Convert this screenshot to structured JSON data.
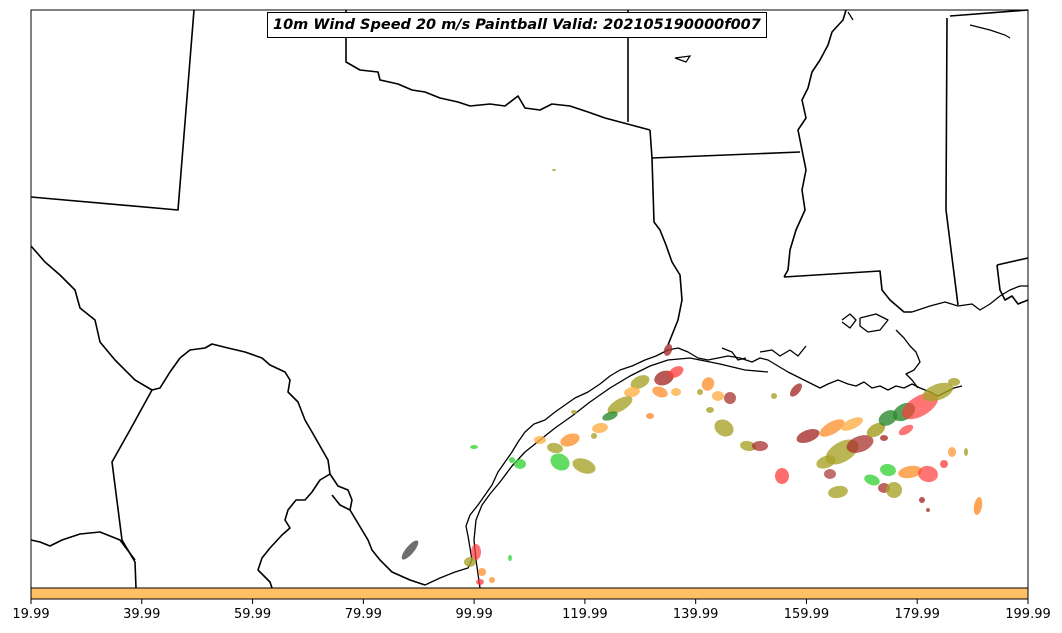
{
  "chart_data": {
    "type": "map",
    "title": "10m Wind Speed 20 m/s Paintball Valid: 202105190000f007",
    "colorbar": {
      "ticks": [
        "19.99",
        "39.99",
        "59.99",
        "79.99",
        "99.99",
        "119.99",
        "139.99",
        "159.99",
        "179.99",
        "199.99"
      ],
      "range": [
        19.99,
        199.99
      ],
      "color": "#ffbf66"
    },
    "colors": {
      "orange": "#ff8c2a",
      "light_orange": "#ffb04a",
      "red": "#ff3b3b",
      "dark_red": "#a8302c",
      "olive": "#a9a22a",
      "green": "#3bd33b",
      "dark_green": "#2e8a2e",
      "gray": "#555555",
      "colorbar": "#ffbf66"
    }
  }
}
